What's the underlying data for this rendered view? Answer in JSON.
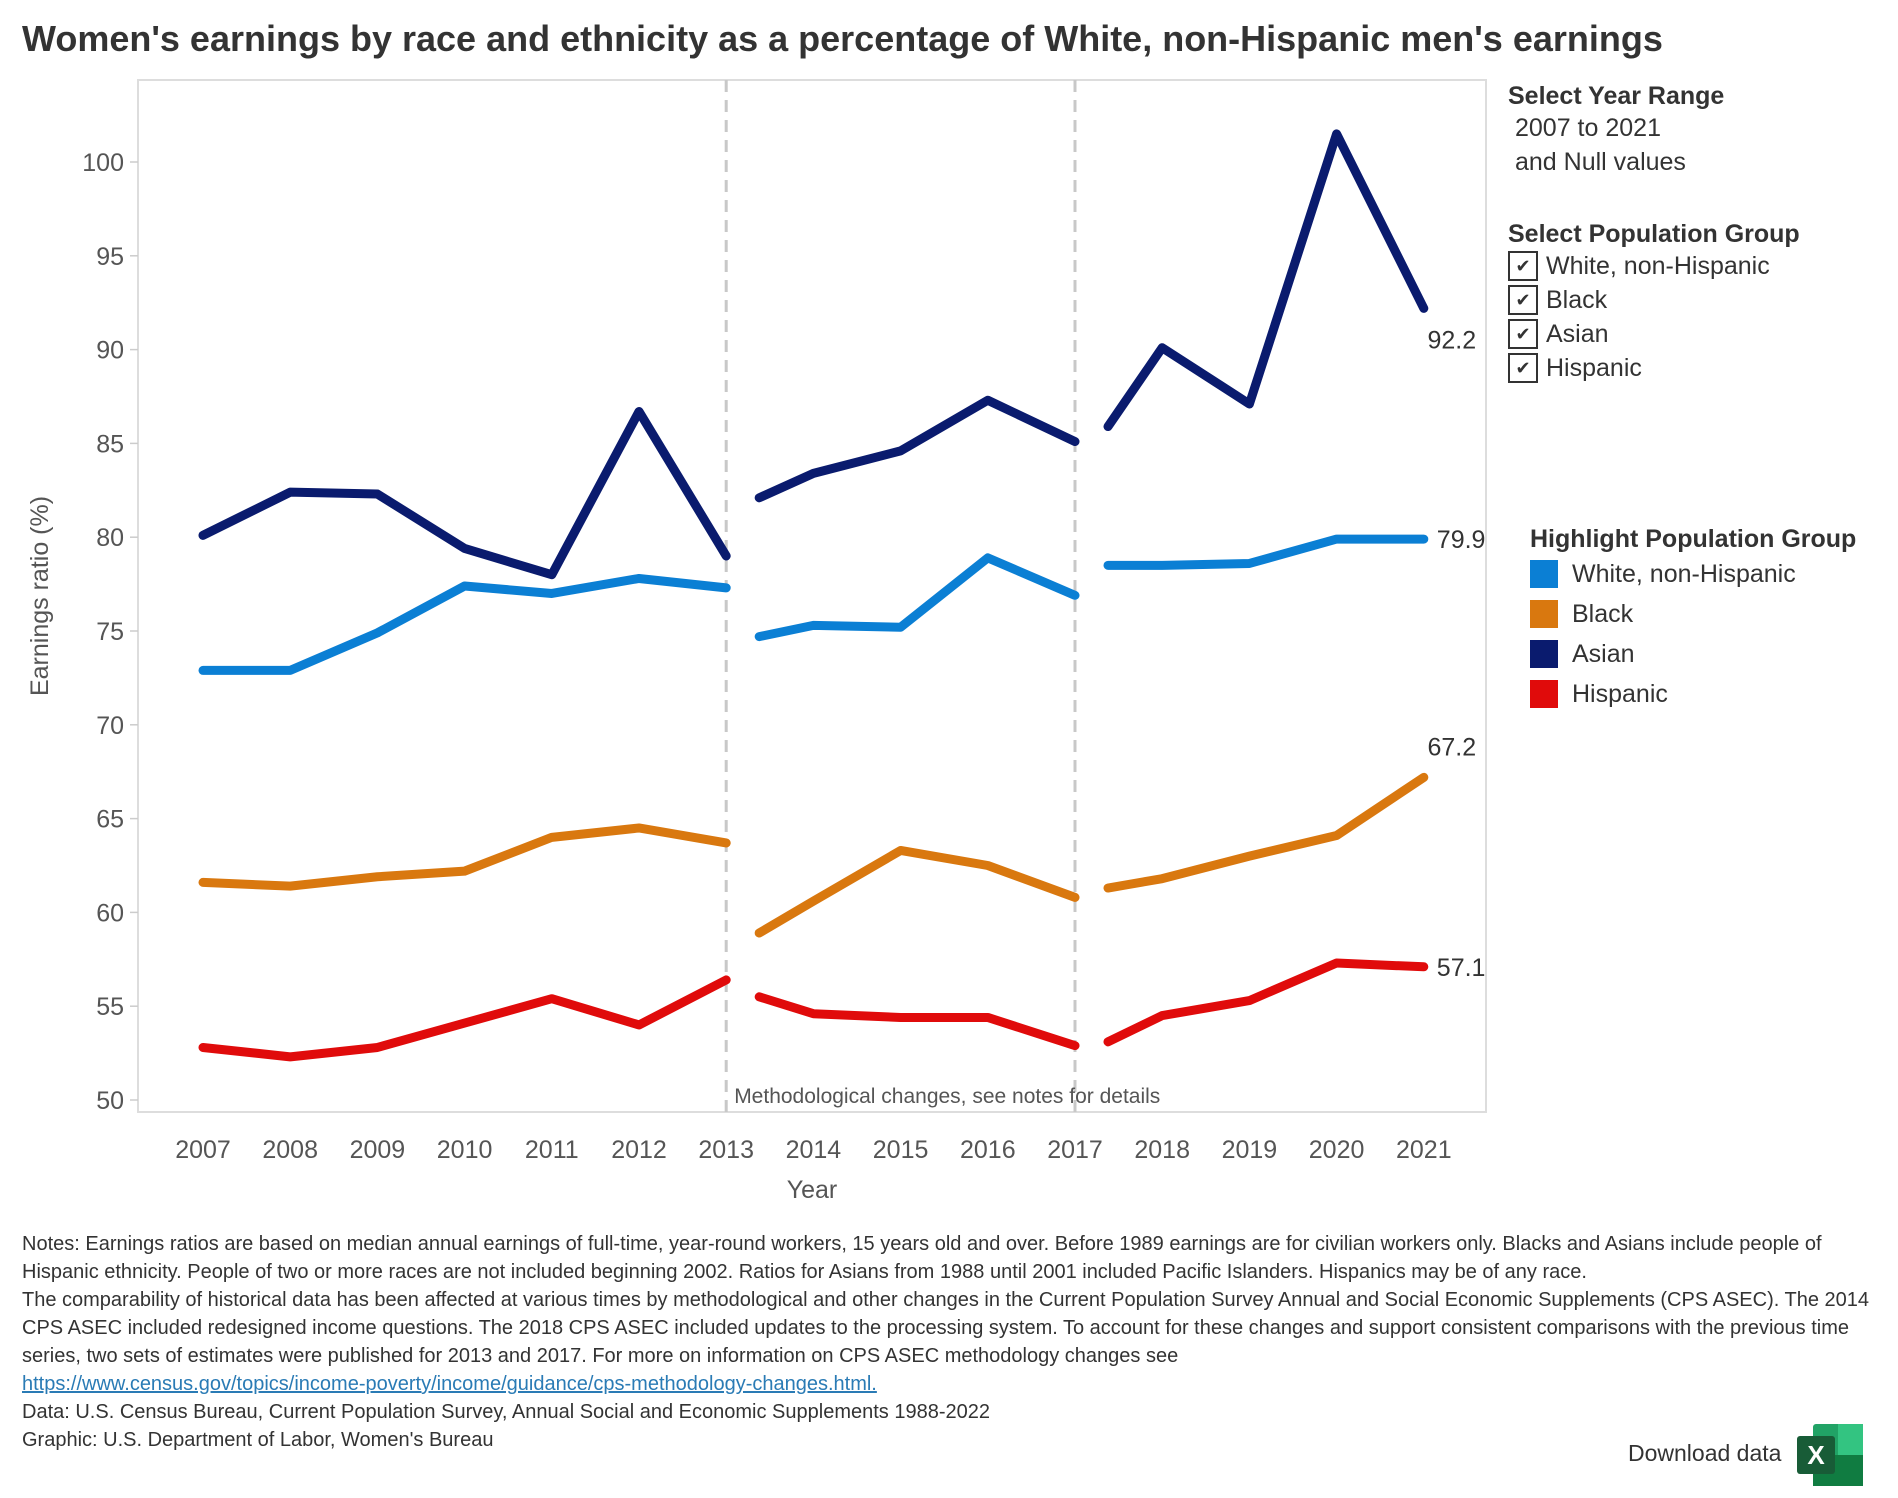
{
  "title": "Women's earnings by race and ethnicity as a percentage of White, non-Hispanic men's earnings",
  "year_range": {
    "heading": "Select Year Range",
    "line1": "2007 to 2021",
    "line2": "and Null values"
  },
  "population_filter": {
    "heading": "Select Population Group",
    "check_mark": "✔",
    "items": [
      {
        "label": "White, non-Hispanic",
        "checked": true
      },
      {
        "label": "Black",
        "checked": true
      },
      {
        "label": "Asian",
        "checked": true
      },
      {
        "label": "Hispanic",
        "checked": true
      }
    ]
  },
  "highlight": {
    "heading": "Highlight Population Group",
    "items": [
      {
        "label": "White, non-Hispanic",
        "color": "#0b7fd4"
      },
      {
        "label": "Black",
        "color": "#d9780f"
      },
      {
        "label": "Asian",
        "color": "#0a1b6e"
      },
      {
        "label": "Hispanic",
        "color": "#e00b0b"
      }
    ]
  },
  "chart_data": {
    "type": "line",
    "xlabel": "Year",
    "ylabel": "Earnings ratio (%)",
    "ylim": [
      50,
      104
    ],
    "yticks": [
      50,
      55,
      60,
      65,
      70,
      75,
      80,
      85,
      90,
      95,
      100
    ],
    "x_labels": [
      "2007",
      "2008",
      "2009",
      "2010",
      "2011",
      "2012",
      "2013",
      "2014",
      "2015",
      "2016",
      "2017",
      "2018",
      "2019",
      "2020",
      "2021"
    ],
    "methodology_breaks": [
      "2013",
      "2017"
    ],
    "annotation": "Methodological changes, see notes for details",
    "grid": false,
    "series": [
      {
        "name": "White, non-Hispanic",
        "color": "#0b7fd4",
        "segments": [
          {
            "x": [
              "2007",
              "2008",
              "2009",
              "2010",
              "2011",
              "2012",
              "2013"
            ],
            "y": [
              72.9,
              72.9,
              74.9,
              77.4,
              77.0,
              77.8,
              77.3
            ]
          },
          {
            "x": [
              "2013",
              "2014",
              "2015",
              "2016",
              "2017"
            ],
            "y": [
              74.7,
              75.3,
              75.2,
              78.9,
              76.9
            ]
          },
          {
            "x": [
              "2017",
              "2018",
              "2019",
              "2020",
              "2021"
            ],
            "y": [
              78.5,
              78.5,
              78.6,
              79.9,
              79.9
            ]
          }
        ],
        "end_label": "79.9"
      },
      {
        "name": "Black",
        "color": "#d9780f",
        "segments": [
          {
            "x": [
              "2007",
              "2008",
              "2009",
              "2010",
              "2011",
              "2012",
              "2013"
            ],
            "y": [
              61.6,
              61.4,
              61.9,
              62.2,
              64.0,
              64.5,
              63.7
            ]
          },
          {
            "x": [
              "2013",
              "2014",
              "2015",
              "2016",
              "2017"
            ],
            "y": [
              58.9,
              60.6,
              63.3,
              62.5,
              60.8
            ]
          },
          {
            "x": [
              "2017",
              "2018",
              "2019",
              "2020",
              "2021"
            ],
            "y": [
              61.3,
              61.8,
              63.0,
              64.1,
              67.2
            ]
          }
        ],
        "end_label": "67.2"
      },
      {
        "name": "Asian",
        "color": "#0a1b6e",
        "segments": [
          {
            "x": [
              "2007",
              "2008",
              "2009",
              "2010",
              "2011",
              "2012",
              "2013"
            ],
            "y": [
              80.1,
              82.4,
              82.3,
              79.4,
              78.0,
              86.7,
              79.0
            ]
          },
          {
            "x": [
              "2013",
              "2014",
              "2015",
              "2016",
              "2017"
            ],
            "y": [
              82.1,
              83.4,
              84.6,
              87.3,
              85.1
            ]
          },
          {
            "x": [
              "2017",
              "2018",
              "2019",
              "2020",
              "2021"
            ],
            "y": [
              85.9,
              90.1,
              87.1,
              101.5,
              92.2
            ]
          }
        ],
        "end_label": "92.2"
      },
      {
        "name": "Hispanic",
        "color": "#e00b0b",
        "segments": [
          {
            "x": [
              "2007",
              "2008",
              "2009",
              "2010",
              "2011",
              "2012",
              "2013"
            ],
            "y": [
              52.8,
              52.3,
              52.8,
              54.1,
              55.4,
              54.0,
              56.4
            ]
          },
          {
            "x": [
              "2013",
              "2014",
              "2015",
              "2016",
              "2017"
            ],
            "y": [
              55.5,
              54.6,
              54.4,
              54.4,
              52.9
            ]
          },
          {
            "x": [
              "2017",
              "2018",
              "2019",
              "2020",
              "2021"
            ],
            "y": [
              53.1,
              54.5,
              55.3,
              57.3,
              57.1
            ]
          }
        ],
        "end_label": "57.1"
      }
    ]
  },
  "notes": {
    "p1": "Notes: Earnings ratios are based on median annual earnings of full-time, year-round workers, 15 years old and over. Before 1989 earnings are for civilian workers only. Blacks and Asians include people of Hispanic ethnicity. People of two or more races are not included beginning 2002. Ratios for Asians from 1988 until 2001 included Pacific Islanders. Hispanics may be of any race.",
    "p2": "The comparability of historical data has been affected at various times by methodological and other changes in the Current Population Survey Annual and Social Economic Supplements (CPS ASEC). The 2014 CPS ASEC included redesigned income questions. The 2018 CPS ASEC included updates to the processing system. To account for these changes and support consistent comparisons with the previous time series, two sets of estimates were published for 2013 and 2017. For more on information on CPS ASEC methodology changes see",
    "link": "https://www.census.gov/topics/income-poverty/income/guidance/cps-methodology-changes.html.",
    "data_source": "Data: U.S. Census Bureau, Current Population Survey, Annual Social and Economic Supplements 1988-2022",
    "graphic_source": "Graphic: U.S. Department of Labor, Women's Bureau"
  },
  "download": {
    "label": "Download data",
    "icon": "excel-icon",
    "icon_letter": "X",
    "icon_color": "#1f7a45"
  }
}
